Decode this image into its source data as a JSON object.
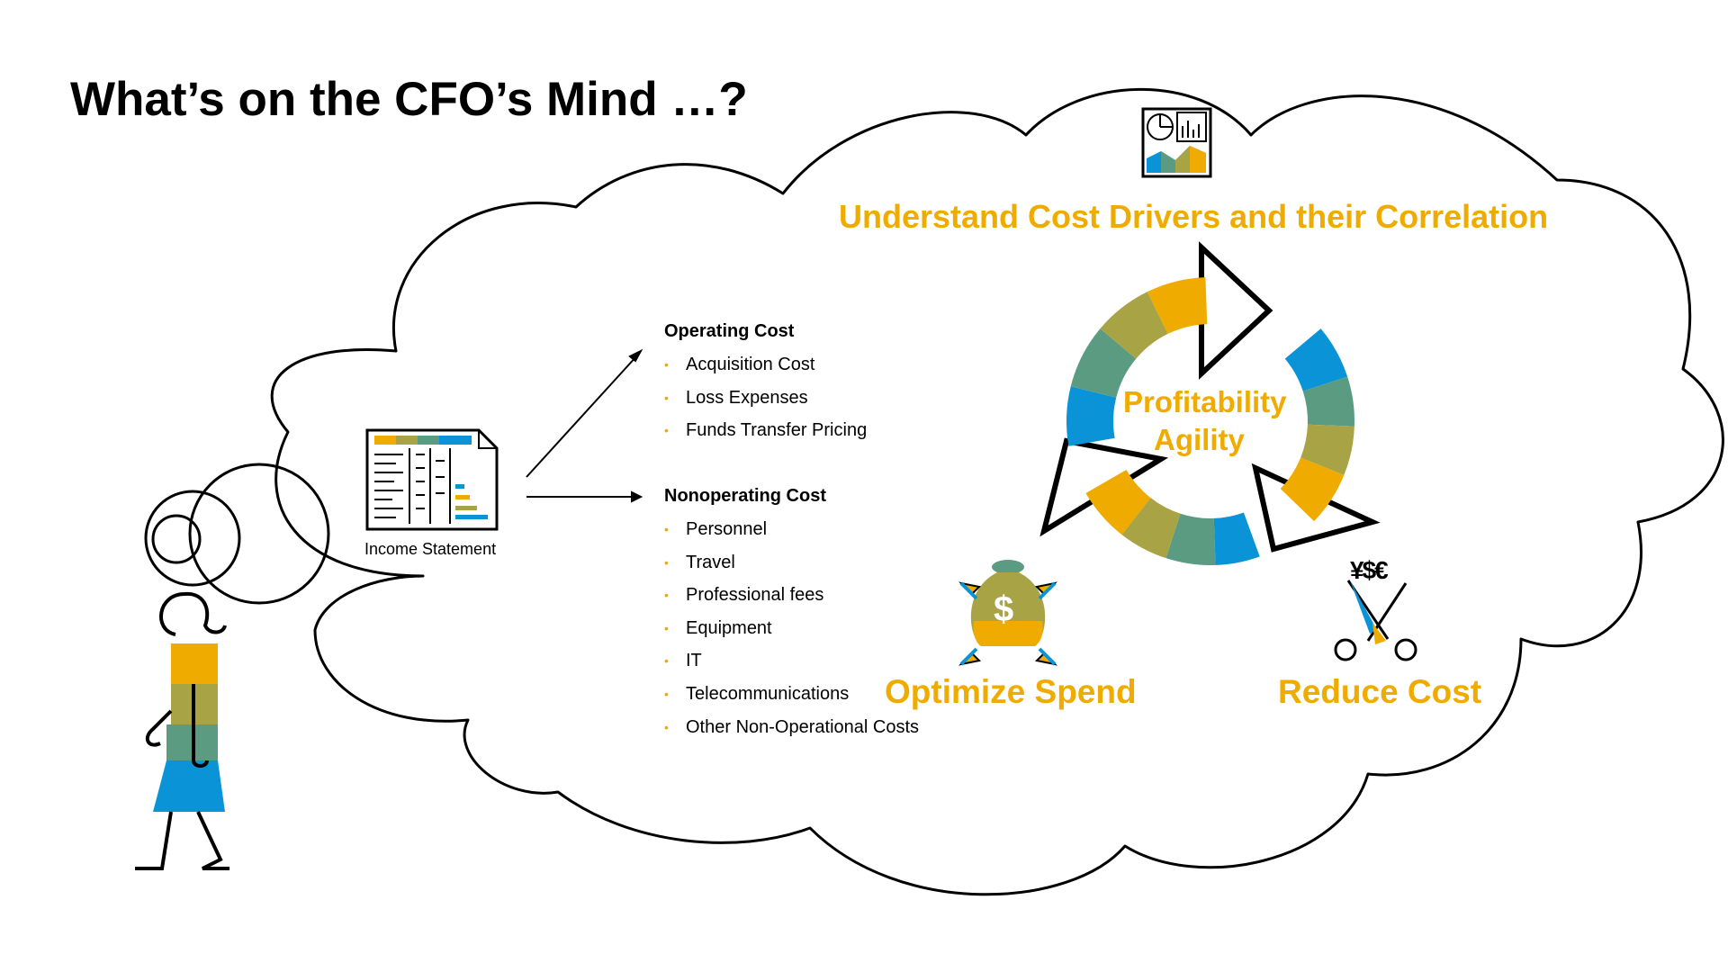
{
  "title": "What’s on the CFO’s Mind …?",
  "income_statement_label": "Income Statement",
  "operating_cost": {
    "heading": "Operating Cost",
    "items": [
      "Acquisition Cost",
      "Loss Expenses",
      "Funds Transfer Pricing"
    ]
  },
  "nonoperating_cost": {
    "heading": "Nonoperating Cost",
    "items": [
      "Personnel",
      "Travel",
      "Professional fees",
      "Equipment",
      "IT",
      "Telecommunications",
      "Other Non-Operational Costs"
    ]
  },
  "cycle": {
    "top": "Understand Cost Drivers and their Correlation",
    "center_line1": "Profitability",
    "center_line2": "Agility",
    "left": "Optimize Spend",
    "right": "Reduce Cost"
  },
  "icons": {
    "money_bag_symbol": "$",
    "currency_symbols": "¥$€"
  },
  "colors": {
    "gold": "#f0ab00",
    "blue": "#0a93d6",
    "teal": "#5a9b82",
    "olive": "#a8a446",
    "mustard": "#c9a92c"
  }
}
